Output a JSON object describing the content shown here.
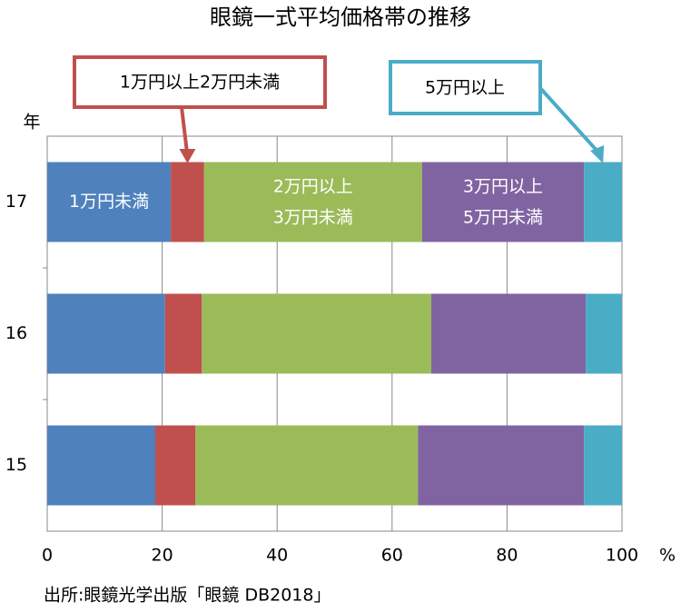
{
  "chart_data": {
    "type": "stacked-barh",
    "title": "眼鏡一式平均価格帯の推移",
    "y_label": "年",
    "x_unit": "%",
    "source": "出所:眼鏡光学出版「眼鏡 DB2018」",
    "categories": [
      "17",
      "16",
      "15"
    ],
    "series": [
      {
        "name": "1万円未満",
        "color": "#4f81bd",
        "values": [
          21.5,
          20.5,
          18.8
        ]
      },
      {
        "name": "1万円以上2万円未満",
        "color": "#c0504d",
        "values": [
          5.8,
          6.4,
          7.0
        ]
      },
      {
        "name": "2万円以上\n3万円未満",
        "color": "#9bbb59",
        "values": [
          37.9,
          39.9,
          38.7
        ]
      },
      {
        "name": "3万円以上\n5万円未満",
        "color": "#8064a2",
        "values": [
          28.2,
          26.9,
          28.9
        ]
      },
      {
        "name": "5万円以上",
        "color": "#4bacc6",
        "values": [
          6.6,
          6.3,
          6.6
        ]
      }
    ],
    "xlim": [
      0,
      100
    ],
    "xticks": [
      0,
      20,
      40,
      60,
      80,
      100
    ],
    "grid": true
  }
}
